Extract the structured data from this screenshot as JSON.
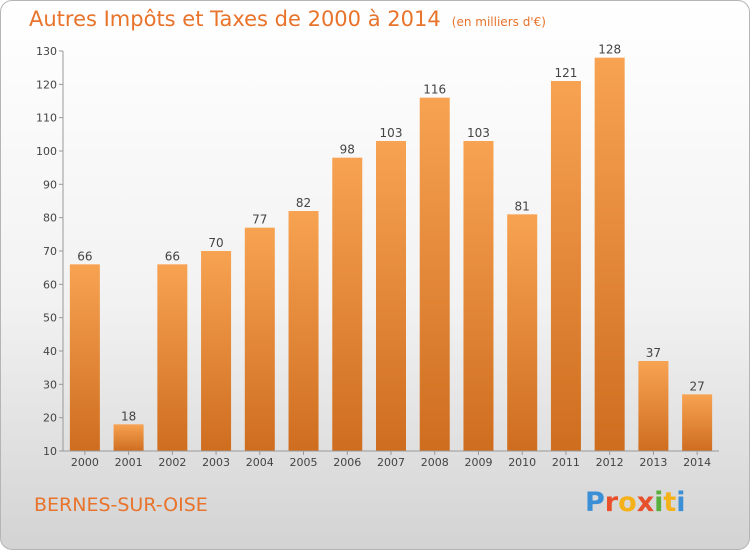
{
  "title": "Autres Impôts et Taxes de 2000 à 2014",
  "unit_label": "(en milliers d'€)",
  "city": "BERNES-SUR-OISE",
  "logo": {
    "text": "Proxiti",
    "colors": [
      "#3a8fd6",
      "#e8502b",
      "#f5b11a",
      "#e8502b",
      "#5ab03c",
      "#f5b11a",
      "#3a8fd6"
    ]
  },
  "colors": {
    "bar_light": "#f7a352",
    "bar_dark": "#cf6d1f",
    "text": "#e8732b"
  },
  "chart_data": {
    "type": "bar",
    "title": "Autres Impôts et Taxes de 2000 à 2014",
    "subtitle": "(en milliers d'€)",
    "categories": [
      "2000",
      "2001",
      "2002",
      "2003",
      "2004",
      "2005",
      "2006",
      "2007",
      "2008",
      "2009",
      "2010",
      "2011",
      "2012",
      "2013",
      "2014"
    ],
    "values": [
      66,
      18,
      66,
      70,
      77,
      82,
      98,
      103,
      116,
      103,
      81,
      121,
      128,
      37,
      27
    ],
    "ylim": [
      10,
      130
    ],
    "yticks": [
      10,
      20,
      30,
      40,
      50,
      60,
      70,
      80,
      90,
      100,
      110,
      120,
      130
    ],
    "grid": false,
    "xlabel": "",
    "ylabel": ""
  }
}
